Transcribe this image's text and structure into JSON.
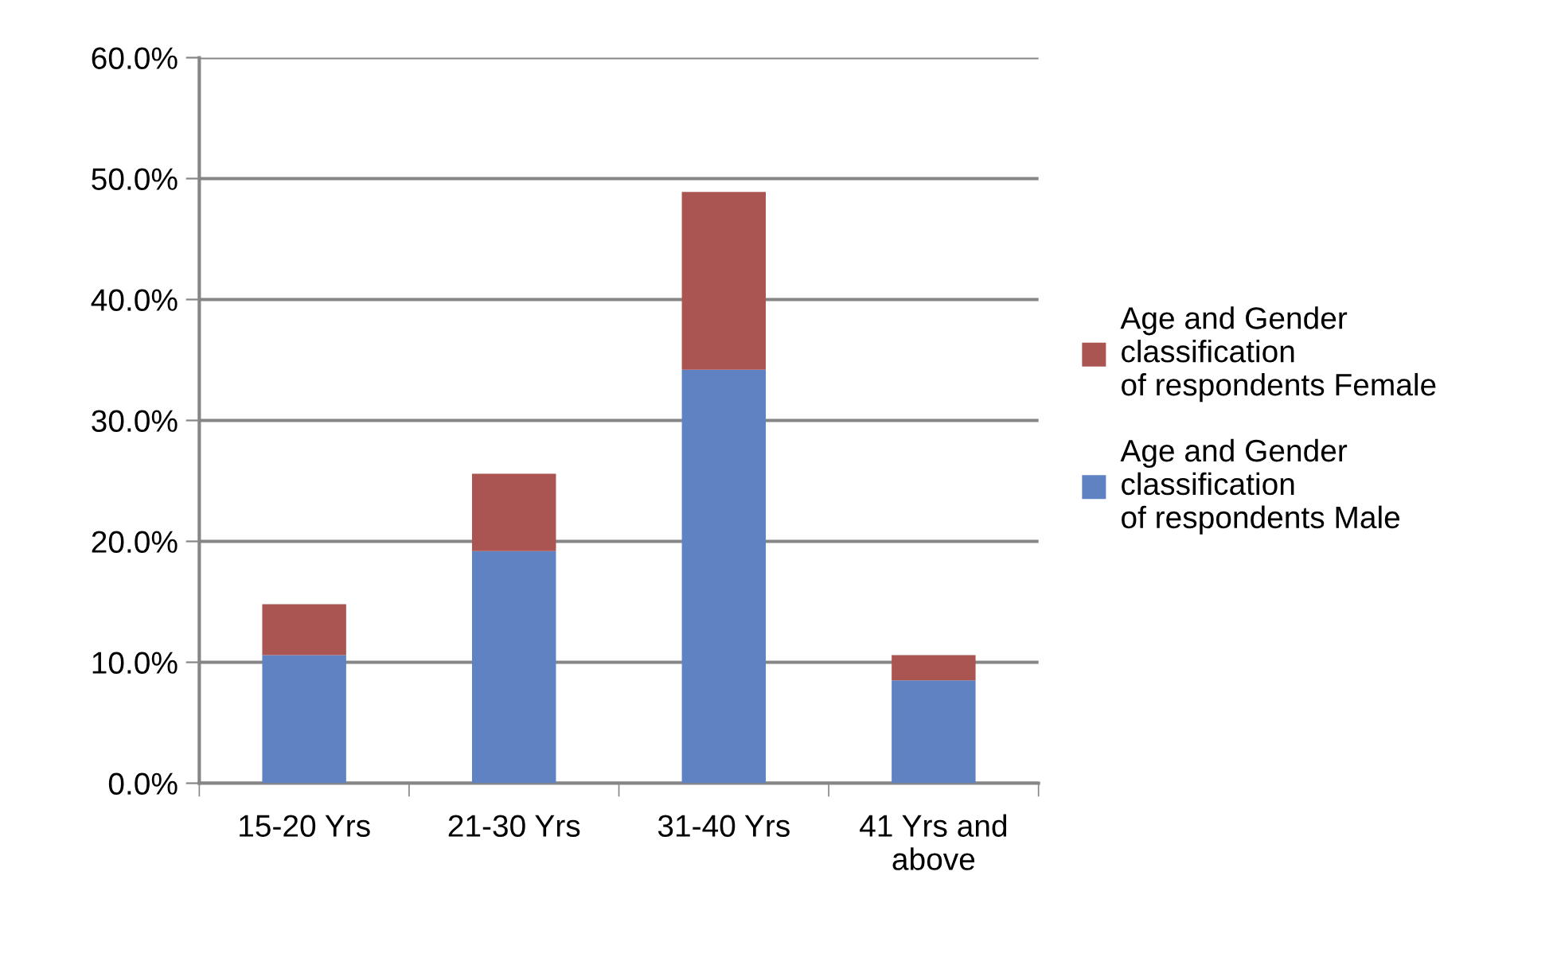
{
  "chart_data": {
    "type": "bar",
    "stacked": true,
    "categories": [
      "15-20 Yrs",
      "21-30 Yrs",
      "31-40 Yrs",
      "41 Yrs and\nabove"
    ],
    "series": [
      {
        "name": "Age and Gender\nclassification\nof respondents Male",
        "color": "#5f82c2",
        "values": [
          10.6,
          19.2,
          34.2,
          8.5
        ]
      },
      {
        "name": "Age and Gender\nclassification\nof respondents Female",
        "color": "#ab5553",
        "values": [
          4.2,
          6.4,
          14.7,
          2.1
        ]
      }
    ],
    "ylim": [
      0,
      60
    ],
    "yticks": [
      {
        "value": 0,
        "label": "0.0%"
      },
      {
        "value": 10,
        "label": "10.0%"
      },
      {
        "value": 20,
        "label": "20.0%"
      },
      {
        "value": 30,
        "label": "30.0%"
      },
      {
        "value": 40,
        "label": "40.0%"
      },
      {
        "value": 50,
        "label": "50.0%"
      },
      {
        "value": 60,
        "label": "60.0%"
      }
    ],
    "grid": "y",
    "legend": "right"
  }
}
